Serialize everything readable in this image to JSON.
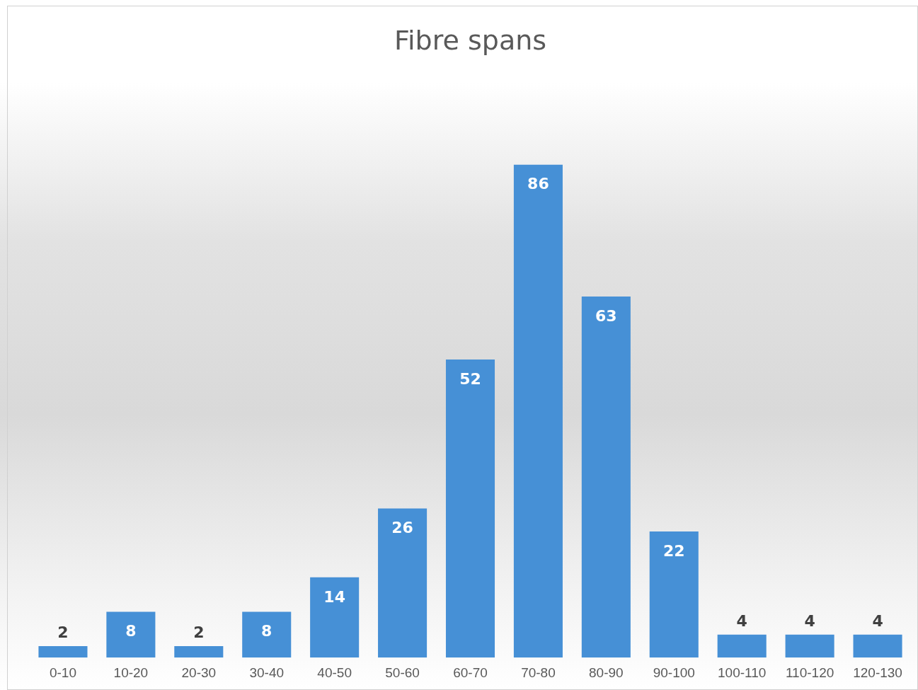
{
  "chart_data": {
    "type": "bar",
    "title": "Fibre spans",
    "categories": [
      "0-10",
      "10-20",
      "20-30",
      "30-40",
      "40-50",
      "50-60",
      "60-70",
      "70-80",
      "80-90",
      "90-100",
      "100-110",
      "110-120",
      "120-130"
    ],
    "values": [
      2,
      8,
      2,
      8,
      14,
      26,
      52,
      86,
      63,
      22,
      4,
      4,
      4
    ],
    "color": "#4690d6",
    "data_labels": true,
    "grid": false,
    "legend": false
  }
}
